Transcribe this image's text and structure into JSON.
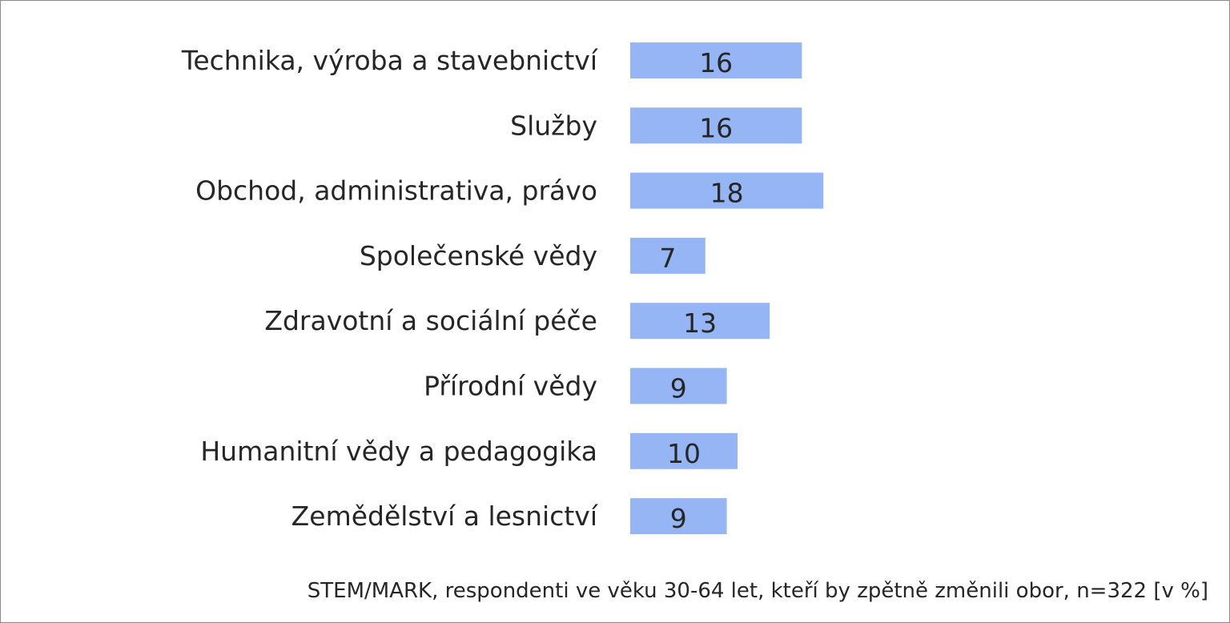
{
  "chart_data": {
    "type": "bar",
    "orientation": "horizontal",
    "categories": [
      "Technika, výroba a stavebnictví",
      "Služby",
      "Obchod, administrativa, právo",
      "Společenské vědy",
      "Zdravotní a sociální péče",
      "Přírodní vědy",
      "Humanitní vědy a pedagogika",
      "Zemědělství a lesnictví"
    ],
    "values": [
      16,
      16,
      18,
      7,
      13,
      9,
      10,
      9
    ],
    "data_labels": [
      "16",
      "16",
      "18",
      "7",
      "13",
      "9",
      "10",
      "9"
    ],
    "bar_color": "#96b5f5",
    "grid": false,
    "legend": "none"
  },
  "footnote": "STEM/MARK, respondenti ve věku 30-64 let, kteří by zpětně změnili obor, n=322 [v %]"
}
